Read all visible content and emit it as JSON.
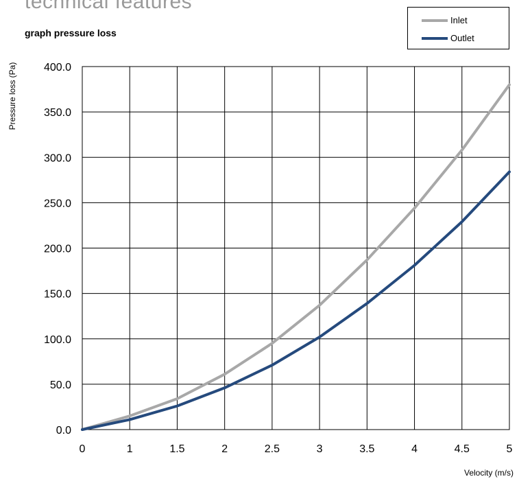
{
  "heading": "technical features",
  "chart_data": {
    "type": "line",
    "title": "graph pressure  loss",
    "xlabel": "Velocity (m/s)",
    "ylabel": "Pressure loss (Pa)",
    "x": [
      0,
      1,
      1.5,
      2,
      2.5,
      3,
      3.5,
      4,
      4.5,
      5
    ],
    "x_tick_labels": [
      "0",
      "1",
      "1.5",
      "2",
      "2.5",
      "3",
      "3.5",
      "4",
      "4.5",
      "5"
    ],
    "y_tick_labels": [
      "0.0",
      "50.0",
      "100.0",
      "150.0",
      "200.0",
      "250.0",
      "300.0",
      "350.0",
      "400.0"
    ],
    "ylim": [
      0,
      400
    ],
    "grid": true,
    "legend_position": "top-right",
    "series": [
      {
        "name": "Inlet",
        "color": "#a8a8a8",
        "values": [
          0,
          15,
          34,
          61,
          95,
          137,
          187,
          244,
          308,
          380
        ]
      },
      {
        "name": "Outlet",
        "color": "#254a7d",
        "values": [
          0,
          11,
          26,
          46,
          71,
          102,
          139,
          181,
          229,
          284
        ]
      }
    ]
  }
}
